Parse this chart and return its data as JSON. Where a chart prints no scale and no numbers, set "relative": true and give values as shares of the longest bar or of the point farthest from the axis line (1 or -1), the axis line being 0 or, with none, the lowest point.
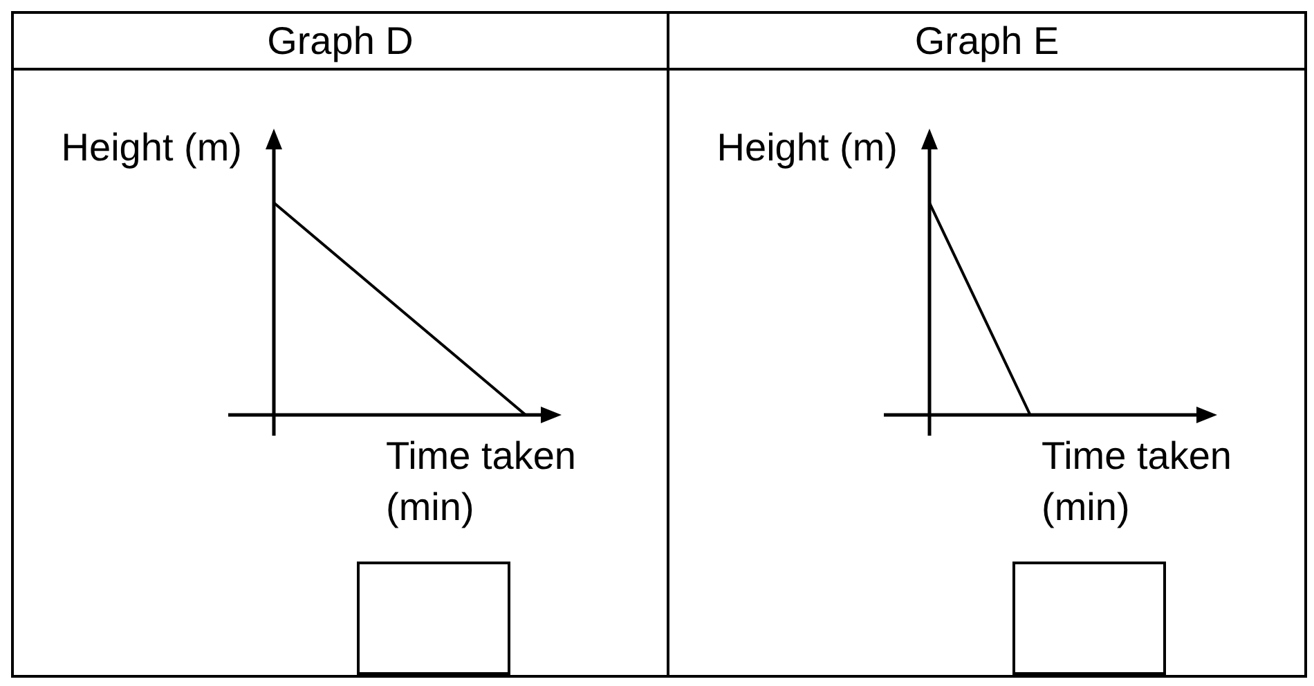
{
  "chart_data": [
    {
      "type": "line",
      "title": "Graph D",
      "xlabel": "Time taken (min)",
      "ylabel": "Height (m)",
      "categories": [
        null,
        null,
        null
      ],
      "values": [
        1,
        0.5,
        0
      ],
      "relative": true,
      "color": "#000000",
      "marker": "none"
    },
    {
      "type": "line",
      "title": "Graph E",
      "xlabel": "Time taken (min)",
      "ylabel": "Height (m)",
      "categories": [
        null,
        null,
        null,
        null,
        null,
        null
      ],
      "values": [
        1,
        0.5,
        0,
        null,
        null,
        null
      ],
      "relative": true,
      "color": "#000000",
      "marker": "none"
    }
  ]
}
